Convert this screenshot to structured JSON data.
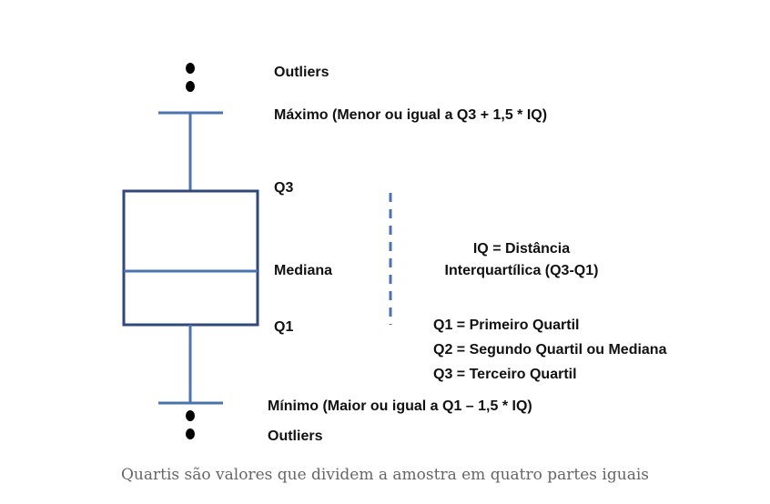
{
  "labels": {
    "outliers_top": "Outliers",
    "maximo": "Máximo (Menor ou igual a Q3 + 1,5 * IQ)",
    "q3": "Q3",
    "mediana": "Mediana",
    "q1": "Q1",
    "minimo": "Mínimo (Maior ou igual a Q1 – 1,5 * IQ)",
    "outliers_bottom": "Outliers"
  },
  "iq": {
    "line1": "IQ = Distância",
    "line2": "Interquartílica (Q3-Q1)"
  },
  "legend": [
    "Q1 = Primeiro Quartil",
    "Q2 = Segundo Quartil ou Mediana",
    "Q3 = Terceiro Quartil"
  ],
  "caption": "Quartis são valores que dividem a amostra em quatro partes iguais",
  "colors": {
    "box_border": "#2f4a7a",
    "whisker": "#4a74b0",
    "dashed_line": "#4a74b0",
    "caption": "#666666"
  }
}
